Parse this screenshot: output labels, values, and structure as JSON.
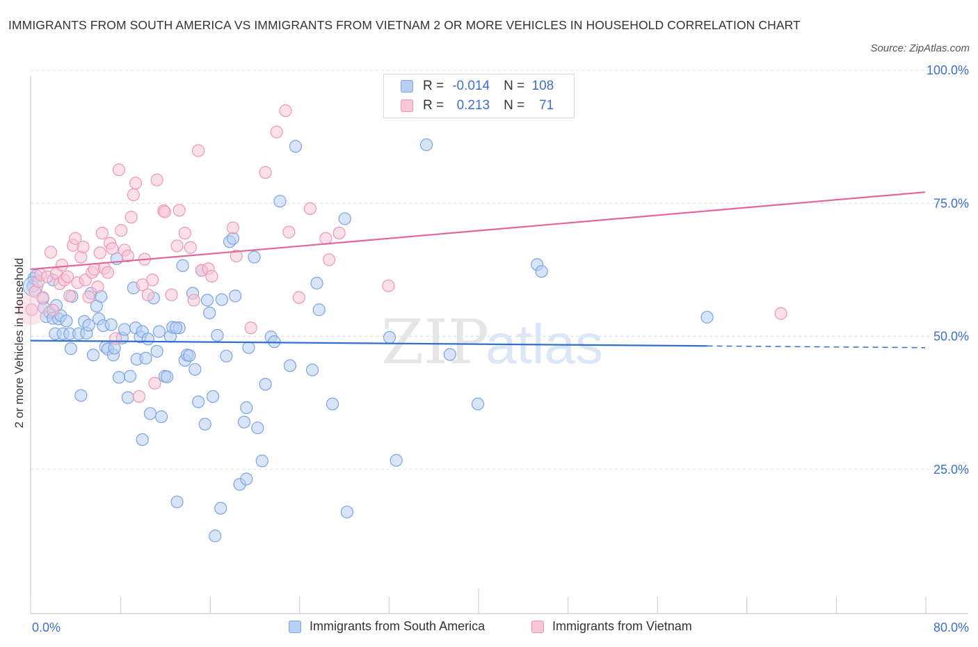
{
  "title": "IMMIGRANTS FROM SOUTH AMERICA VS IMMIGRANTS FROM VIETNAM 2 OR MORE VEHICLES IN HOUSEHOLD CORRELATION CHART",
  "source": "Source: ZipAtlas.com",
  "watermark": {
    "zip": "ZIP",
    "atlas": "atlas"
  },
  "legend": {
    "r_label": "R =",
    "n_label": "N =",
    "rows": [
      {
        "r": "-0.014",
        "n": "108",
        "color": "#7aa3e0"
      },
      {
        "r": "0.213",
        "n": "71",
        "color": "#ec97b3"
      }
    ]
  },
  "chart_data": {
    "type": "scatter",
    "title": "IMMIGRANTS FROM SOUTH AMERICA VS IMMIGRANTS FROM VIETNAM 2 OR MORE VEHICLES IN HOUSEHOLD CORRELATION CHART",
    "ylabel": "2 or more Vehicles in Household",
    "xlabel": "",
    "xlim": [
      0,
      80
    ],
    "ylim": [
      0,
      100
    ],
    "x_tick_labels": [
      "0.0%",
      "80.0%"
    ],
    "y_tick_labels": [
      "100.0%",
      "75.0%",
      "50.0%",
      "25.0%"
    ],
    "y_ticks": [
      100,
      75,
      50,
      25
    ],
    "grid": true,
    "legend_position": "top-center",
    "series": [
      {
        "name": "Immigrants from South America",
        "color": "#7aa3e0",
        "fill": "#b8d0f4",
        "trend": {
          "x": [
            0,
            60.5
          ],
          "y": [
            49.2,
            48.2
          ],
          "dashed_to_x": 80
        },
        "points": [
          [
            0.2,
            59.4
          ],
          [
            0.3,
            60.9
          ],
          [
            0.5,
            61.4
          ],
          [
            1.1,
            57.1
          ],
          [
            1.2,
            55.4
          ],
          [
            1.4,
            53.7
          ],
          [
            1.7,
            54.5
          ],
          [
            2.0,
            53.4
          ],
          [
            2.2,
            50.5
          ],
          [
            2.3,
            55.8
          ],
          [
            2.5,
            53.3
          ],
          [
            2.7,
            53.9
          ],
          [
            2.9,
            50.5
          ],
          [
            3.2,
            52.9
          ],
          [
            3.5,
            50.5
          ],
          [
            3.6,
            47.7
          ],
          [
            3.7,
            57.5
          ],
          [
            4.3,
            50.5
          ],
          [
            4.5,
            38.9
          ],
          [
            4.8,
            52.8
          ],
          [
            5.0,
            50.6
          ],
          [
            5.2,
            52.1
          ],
          [
            5.4,
            58.1
          ],
          [
            5.6,
            46.5
          ],
          [
            5.9,
            55.7
          ],
          [
            6.1,
            53.3
          ],
          [
            6.3,
            57.5
          ],
          [
            6.5,
            52.0
          ],
          [
            6.7,
            48.0
          ],
          [
            6.9,
            47.6
          ],
          [
            7.2,
            52.2
          ],
          [
            7.4,
            46.5
          ],
          [
            7.5,
            47.8
          ],
          [
            7.7,
            64.6
          ],
          [
            7.9,
            42.3
          ],
          [
            8.2,
            49.7
          ],
          [
            8.4,
            51.3
          ],
          [
            8.7,
            38.5
          ],
          [
            8.9,
            42.5
          ],
          [
            9.2,
            59.1
          ],
          [
            9.4,
            51.6
          ],
          [
            9.5,
            45.7
          ],
          [
            9.8,
            49.9
          ],
          [
            10.0,
            50.9
          ],
          [
            10.3,
            45.9
          ],
          [
            10.5,
            49.5
          ],
          [
            10.7,
            35.5
          ],
          [
            11.0,
            57.2
          ],
          [
            11.3,
            47.2
          ],
          [
            11.5,
            50.9
          ],
          [
            11.7,
            34.9
          ],
          [
            12.0,
            42.5
          ],
          [
            12.2,
            42.4
          ],
          [
            12.5,
            50.0
          ],
          [
            12.7,
            51.7
          ],
          [
            13.1,
            18.9
          ],
          [
            13.3,
            51.6
          ],
          [
            13.6,
            63.3
          ],
          [
            13.8,
            45.5
          ],
          [
            14.0,
            46.5
          ],
          [
            14.2,
            46.4
          ],
          [
            14.5,
            58.1
          ],
          [
            14.7,
            43.8
          ],
          [
            15.0,
            37.7
          ],
          [
            15.3,
            62.4
          ],
          [
            15.6,
            33.5
          ],
          [
            15.8,
            56.8
          ],
          [
            16.0,
            54.4
          ],
          [
            16.3,
            38.7
          ],
          [
            16.5,
            12.5
          ],
          [
            16.7,
            50.2
          ],
          [
            17.0,
            17.7
          ],
          [
            17.1,
            56.9
          ],
          [
            17.5,
            46.3
          ],
          [
            17.8,
            67.8
          ],
          [
            18.1,
            68.4
          ],
          [
            18.3,
            57.6
          ],
          [
            18.7,
            22.2
          ],
          [
            19.1,
            33.9
          ],
          [
            19.3,
            36.6
          ],
          [
            19.5,
            47.9
          ],
          [
            20.0,
            64.9
          ],
          [
            20.3,
            32.8
          ],
          [
            20.7,
            26.6
          ],
          [
            21.0,
            41.0
          ],
          [
            21.5,
            49.9
          ],
          [
            21.8,
            49.0
          ],
          [
            22.3,
            75.4
          ],
          [
            23.2,
            44.5
          ],
          [
            23.7,
            85.7
          ],
          [
            25.2,
            43.7
          ],
          [
            25.6,
            60.0
          ],
          [
            25.8,
            55.0
          ],
          [
            27.0,
            37.3
          ],
          [
            28.1,
            72.1
          ],
          [
            28.3,
            17.0
          ],
          [
            32.1,
            49.8
          ],
          [
            32.7,
            26.7
          ],
          [
            35.4,
            86.0
          ],
          [
            37.5,
            46.6
          ],
          [
            40.0,
            37.3
          ],
          [
            45.3,
            63.5
          ],
          [
            45.7,
            62.2
          ],
          [
            60.5,
            53.6
          ],
          [
            2.0,
            60.6
          ],
          [
            10.0,
            30.6
          ],
          [
            13.0,
            51.6
          ],
          [
            19.3,
            23.2
          ]
        ]
      },
      {
        "name": "Immigrants from Vietnam",
        "color": "#ec97b3",
        "fill": "#f8c6d6",
        "trend": {
          "x": [
            0,
            80
          ],
          "y": [
            62.6,
            77.1
          ]
        },
        "points": [
          [
            0.1,
            55.0
          ],
          [
            0.4,
            58.4
          ],
          [
            0.7,
            60.3
          ],
          [
            0.9,
            61.6
          ],
          [
            1.1,
            57.3
          ],
          [
            1.5,
            61.2
          ],
          [
            1.8,
            65.8
          ],
          [
            2.0,
            54.9
          ],
          [
            2.3,
            61.8
          ],
          [
            2.6,
            59.9
          ],
          [
            2.8,
            63.4
          ],
          [
            3.0,
            60.6
          ],
          [
            3.3,
            61.2
          ],
          [
            3.5,
            57.6
          ],
          [
            3.8,
            67.1
          ],
          [
            4.0,
            68.4
          ],
          [
            4.2,
            60.1
          ],
          [
            4.5,
            64.9
          ],
          [
            4.7,
            66.8
          ],
          [
            4.9,
            60.6
          ],
          [
            5.2,
            57.4
          ],
          [
            5.5,
            62.0
          ],
          [
            5.7,
            62.6
          ],
          [
            6.0,
            59.3
          ],
          [
            6.2,
            65.7
          ],
          [
            6.4,
            69.4
          ],
          [
            6.6,
            62.8
          ],
          [
            6.9,
            62.0
          ],
          [
            7.1,
            67.5
          ],
          [
            7.3,
            66.5
          ],
          [
            7.6,
            49.6
          ],
          [
            7.9,
            81.3
          ],
          [
            8.1,
            69.9
          ],
          [
            8.4,
            66.2
          ],
          [
            8.7,
            65.1
          ],
          [
            9.0,
            72.4
          ],
          [
            9.2,
            76.6
          ],
          [
            9.4,
            78.8
          ],
          [
            9.7,
            38.7
          ],
          [
            10.0,
            59.7
          ],
          [
            10.2,
            64.5
          ],
          [
            10.5,
            57.8
          ],
          [
            10.9,
            60.6
          ],
          [
            11.1,
            41.2
          ],
          [
            11.3,
            79.4
          ],
          [
            11.9,
            73.6
          ],
          [
            12.0,
            73.4
          ],
          [
            12.6,
            57.8
          ],
          [
            13.1,
            67.0
          ],
          [
            13.3,
            73.7
          ],
          [
            13.8,
            69.4
          ],
          [
            14.3,
            66.7
          ],
          [
            14.6,
            56.8
          ],
          [
            15.0,
            84.9
          ],
          [
            15.3,
            62.4
          ],
          [
            15.9,
            62.7
          ],
          [
            16.2,
            61.3
          ],
          [
            18.1,
            70.4
          ],
          [
            18.4,
            65.1
          ],
          [
            19.7,
            51.6
          ],
          [
            21.0,
            80.8
          ],
          [
            22.0,
            88.4
          ],
          [
            22.8,
            92.4
          ],
          [
            23.1,
            69.6
          ],
          [
            24.0,
            57.3
          ],
          [
            25.0,
            74.0
          ],
          [
            26.4,
            68.4
          ],
          [
            26.7,
            64.4
          ],
          [
            27.6,
            69.4
          ],
          [
            32.0,
            59.5
          ],
          [
            67.1,
            54.3
          ]
        ]
      }
    ]
  },
  "bottom_legend": [
    {
      "label": "Immigrants from South America"
    },
    {
      "label": "Immigrants from Vietnam"
    }
  ]
}
